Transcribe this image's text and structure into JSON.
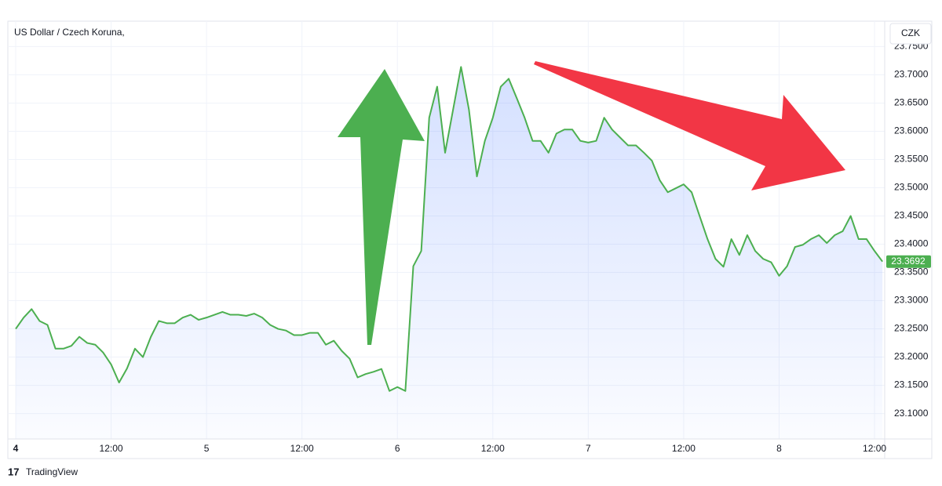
{
  "chart_data": {
    "type": "area",
    "title": "US Dollar / Czech Koruna,",
    "currency": "CZK",
    "branding": "TradingView",
    "color": "#4caf50",
    "grid": true,
    "categories": [
      "4",
      null,
      null,
      null,
      null,
      null,
      null,
      null,
      null,
      null,
      null,
      null,
      "12:00",
      null,
      null,
      null,
      null,
      null,
      null,
      null,
      null,
      null,
      null,
      null,
      "5",
      null,
      null,
      null,
      null,
      null,
      null,
      null,
      null,
      null,
      null,
      null,
      "12:00",
      null,
      null,
      null,
      null,
      null,
      null,
      null,
      null,
      null,
      null,
      null,
      "6",
      null,
      null,
      null,
      null,
      null,
      null,
      null,
      null,
      null,
      null,
      null,
      "12:00",
      null,
      null,
      null,
      null,
      null,
      null,
      null,
      null,
      null,
      null,
      null,
      "7",
      null,
      null,
      null,
      null,
      null,
      null,
      null,
      null,
      null,
      null,
      null,
      "12:00",
      null,
      null,
      null,
      null,
      null,
      null,
      null,
      null,
      null,
      null,
      null,
      "8",
      null,
      null,
      null,
      null,
      null,
      null,
      null,
      null,
      null,
      null,
      null,
      "12:00",
      null
    ],
    "values": [
      23.25,
      23.27,
      23.285,
      23.264,
      23.257,
      23.215,
      23.215,
      23.22,
      23.236,
      23.225,
      23.222,
      23.208,
      23.187,
      23.155,
      23.18,
      23.215,
      23.2,
      23.236,
      23.264,
      23.26,
      23.26,
      23.27,
      23.275,
      23.266,
      23.27,
      23.275,
      23.28,
      23.275,
      23.275,
      23.273,
      23.277,
      23.27,
      23.257,
      23.25,
      23.247,
      23.239,
      23.239,
      23.243,
      23.243,
      23.222,
      23.229,
      23.211,
      23.197,
      23.164,
      23.17,
      23.174,
      23.179,
      23.14,
      23.147,
      23.14,
      23.361,
      23.388,
      23.624,
      23.679,
      23.562,
      23.638,
      23.714,
      23.638,
      23.52,
      23.583,
      23.624,
      23.679,
      23.693,
      23.659,
      23.624,
      23.583,
      23.583,
      23.562,
      23.596,
      23.603,
      23.603,
      23.583,
      23.58,
      23.583,
      23.624,
      23.603,
      23.589,
      23.575,
      23.575,
      23.562,
      23.548,
      23.513,
      23.492,
      23.499,
      23.506,
      23.492,
      23.45,
      23.409,
      23.374,
      23.36,
      23.409,
      23.381,
      23.416,
      23.388,
      23.374,
      23.368,
      23.344,
      23.361,
      23.395,
      23.399,
      23.409,
      23.416,
      23.402,
      23.416,
      23.423,
      23.45,
      23.409,
      23.409,
      23.388,
      23.3692
    ],
    "ylim": [
      23.055,
      23.795
    ],
    "yticks": [
      {
        "value": 23.1,
        "label": "23.1000"
      },
      {
        "value": 23.15,
        "label": "23.1500"
      },
      {
        "value": 23.2,
        "label": "23.2000"
      },
      {
        "value": 23.25,
        "label": "23.2500"
      },
      {
        "value": 23.3,
        "label": "23.3000"
      },
      {
        "value": 23.35,
        "label": "23.3500"
      },
      {
        "value": 23.4,
        "label": "23.4000"
      },
      {
        "value": 23.45,
        "label": "23.4500"
      },
      {
        "value": 23.5,
        "label": "23.5000"
      },
      {
        "value": 23.55,
        "label": "23.5500"
      },
      {
        "value": 23.6,
        "label": "23.6000"
      },
      {
        "value": 23.65,
        "label": "23.6500"
      },
      {
        "value": 23.7,
        "label": "23.7000"
      },
      {
        "value": 23.75,
        "label": "23.7500"
      }
    ]
  }
}
